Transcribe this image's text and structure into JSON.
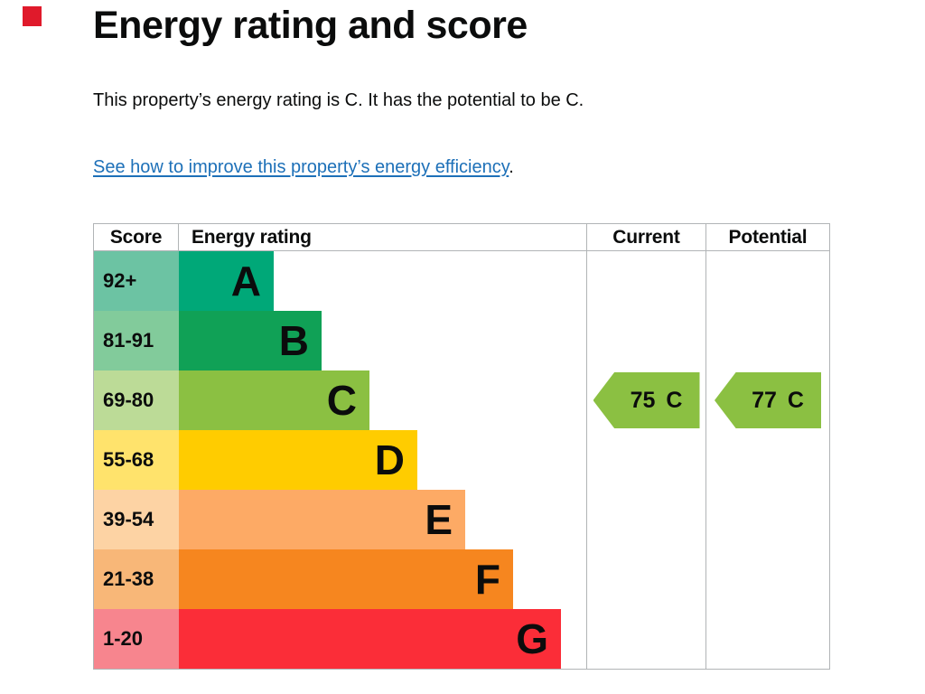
{
  "marker": {
    "color": "#e01a2b"
  },
  "page": {
    "title": "Energy rating and score",
    "intro": "This property’s energy rating is C. It has the potential to be C.",
    "link": "See how to improve this property’s energy efficiency",
    "link_suffix": "."
  },
  "chart_data": {
    "type": "bar",
    "title": "Energy rating and score",
    "columns": [
      "Score",
      "Energy rating",
      "Current",
      "Potential"
    ],
    "bands": [
      {
        "rating": "A",
        "score_range": "92+",
        "color": "#00a878",
        "tint_color": "#6cc3a3"
      },
      {
        "rating": "B",
        "score_range": "81-91",
        "color": "#10a156",
        "tint_color": "#82cb9b"
      },
      {
        "rating": "C",
        "score_range": "69-80",
        "color": "#8bc042",
        "tint_color": "#bcdb97"
      },
      {
        "rating": "D",
        "score_range": "55-68",
        "color": "#ffcc00",
        "tint_color": "#ffe36c"
      },
      {
        "rating": "E",
        "score_range": "39-54",
        "color": "#fdaa65",
        "tint_color": "#fdd3a4"
      },
      {
        "rating": "F",
        "score_range": "21-38",
        "color": "#f6861f",
        "tint_color": "#f8b778"
      },
      {
        "rating": "G",
        "score_range": "1-20",
        "color": "#fb2d38",
        "tint_color": "#f7858e"
      }
    ],
    "current": {
      "label": "Current",
      "score": "75",
      "rating": "C",
      "band": "C",
      "arrow_color": "#8bc042"
    },
    "potential": {
      "label": "Potential",
      "score": "77",
      "rating": "C",
      "band": "C",
      "arrow_color": "#8bc042"
    },
    "layout": {
      "grid": "off",
      "legend_position": "none"
    }
  },
  "colors": {
    "text": "#0b0c0c",
    "link": "#1d70b8",
    "table_border": "#b1b4b6",
    "background": "#ffffff"
  }
}
